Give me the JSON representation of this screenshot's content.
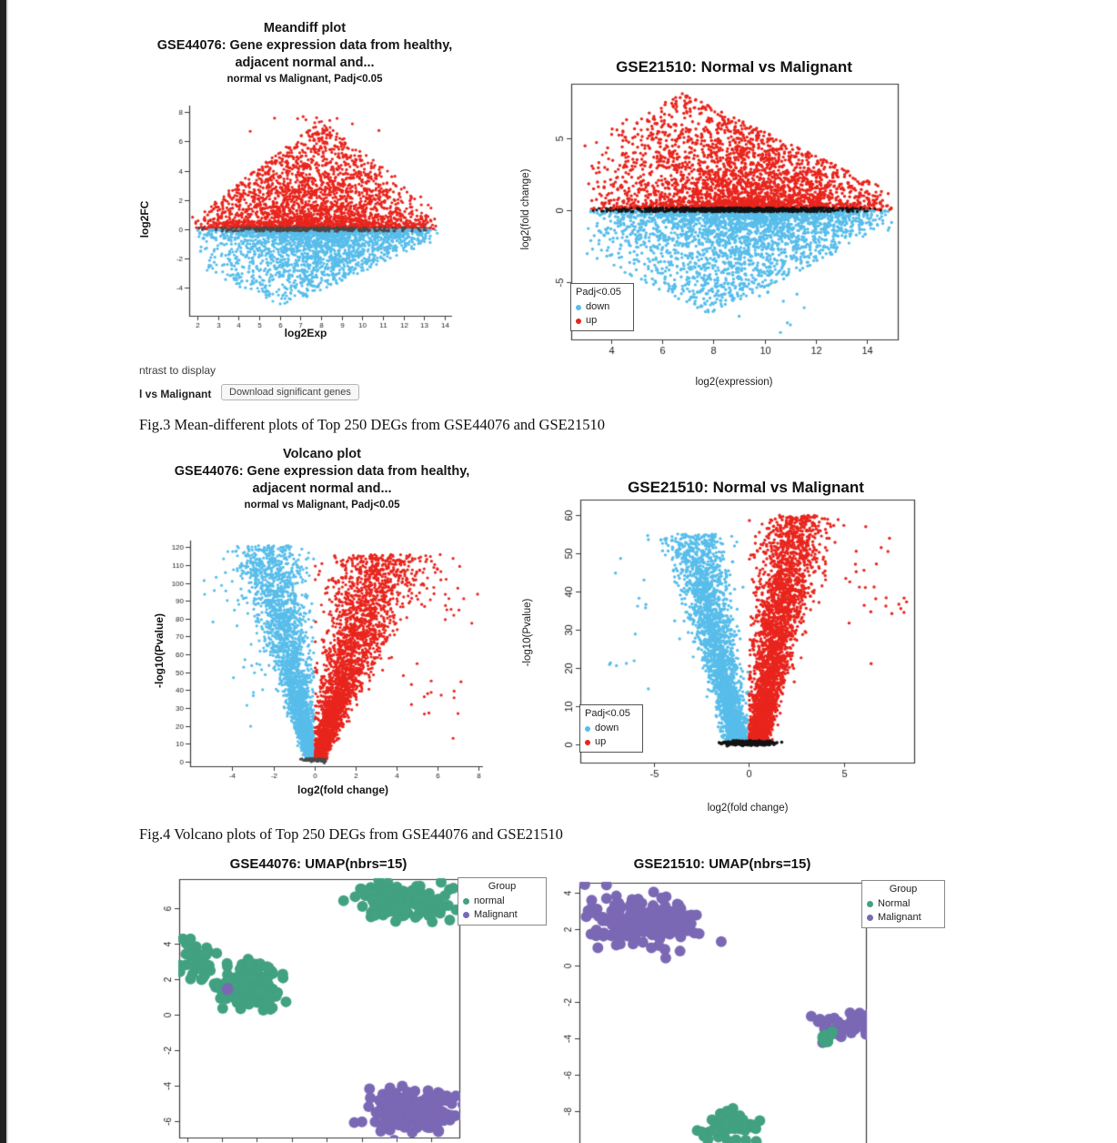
{
  "page": {
    "captions": {
      "fig3": "Fig.3 Mean-different plots of Top 250 DEGs from GSE44076 and GSE21510",
      "fig4": "Fig.4 Volcano plots of Top 250 DEGs from GSE44076 and GSE21510"
    },
    "ui": {
      "contrast_label": "ntrast to display",
      "contrast_value": "l vs Malignant",
      "download_button": "Download significant genes"
    }
  },
  "colors": {
    "red": "#e8251d",
    "blue": "#58bdea",
    "green": "#41a180",
    "purple": "#7b68b5",
    "gray": "#4a4a4a",
    "black": "#141414"
  },
  "chart_data": [
    {
      "id": "ma_gse44076",
      "type": "scatter",
      "title_lines": [
        "Meandiff plot",
        "GSE44076: Gene expression data from healthy,",
        "adjacent normal and...",
        "normal vs Malignant, Padj<0.05"
      ],
      "xlabel": "log2Exp",
      "ylabel": "log2FC",
      "xlim": [
        1.6,
        14.35
      ],
      "ylim": [
        -5.9,
        8.45
      ],
      "xticks": [
        2,
        3,
        4,
        5,
        6,
        7,
        8,
        9,
        10,
        11,
        12,
        13,
        14
      ],
      "xtick_labels": [
        "2",
        "3",
        "4",
        "5",
        "6",
        "7",
        "8",
        "9",
        "10",
        "11",
        "12",
        "13",
        "14"
      ],
      "yticks": [
        -4,
        -2,
        0,
        2,
        4,
        6,
        8
      ],
      "ytick_labels": [
        "-4",
        "-2",
        "0",
        "2",
        "4",
        "6",
        "8"
      ],
      "layers": [
        {
          "name": "up-regulated",
          "gen": "fan",
          "n": 3000,
          "x0": 1.75,
          "x1": 13.7,
          "xpeak": 8,
          "ymax": 7.4,
          "base": 0.1,
          "pow": 2.7,
          "sign": 1,
          "color": "red",
          "r": 1.6
        },
        {
          "name": "up-outliers",
          "gen": "gauss",
          "n": 14,
          "cx": 8.2,
          "cy": 6.9,
          "sx": 1.4,
          "sy": 0.7,
          "color": "red",
          "r": 1.6
        },
        {
          "name": "down-regulated",
          "gen": "fan",
          "n": 2600,
          "x0": 1.75,
          "x1": 13.7,
          "xpeak": 6.2,
          "ymax": 5.3,
          "base": 0.1,
          "pow": 2.9,
          "sign": -1,
          "color": "blue",
          "r": 1.6
        },
        {
          "name": "not-significant",
          "gen": "hline",
          "n": 330,
          "y": 0,
          "jit": 0.26,
          "x0": 1.8,
          "x1": 13.6,
          "color": "gray",
          "r": 1.5
        }
      ]
    },
    {
      "id": "ma_gse21510",
      "type": "scatter",
      "title": "GSE21510: Normal vs Malignant",
      "xlabel": "log2(expression)",
      "ylabel": "log2(fold change)",
      "xlim": [
        2.45,
        15.2
      ],
      "ylim": [
        -9,
        8.8
      ],
      "xticks": [
        4,
        6,
        8,
        10,
        12,
        14
      ],
      "xtick_labels": [
        "4",
        "6",
        "8",
        "10",
        "12",
        "14"
      ],
      "yticks": [
        -5,
        0,
        5
      ],
      "ytick_labels": [
        "-5",
        "0",
        "5"
      ],
      "legend": {
        "title": "Padj<0.05",
        "items": [
          {
            "label": "down",
            "color": "blue"
          },
          {
            "label": "up",
            "color": "red"
          }
        ]
      },
      "layers": [
        {
          "name": "up-regulated",
          "gen": "fan",
          "n": 3300,
          "x0": 2.9,
          "x1": 15.1,
          "xpeak": 6.8,
          "ymax": 8.1,
          "base": 0.14,
          "pow": 2.5,
          "sign": 1,
          "color": "red",
          "r": 1.7
        },
        {
          "name": "down-regulated",
          "gen": "fan",
          "n": 3000,
          "x0": 2.9,
          "x1": 15.1,
          "xpeak": 7.8,
          "ymax": 7.2,
          "base": 0.14,
          "pow": 2.7,
          "sign": -1,
          "color": "blue",
          "r": 1.7
        },
        {
          "name": "down-outliers",
          "gen": "gauss",
          "n": 20,
          "cx": 9,
          "cy": -6,
          "sx": 1.5,
          "sy": 0.8,
          "color": "blue",
          "r": 1.7
        },
        {
          "name": "down-far-pair",
          "gen": "gauss",
          "n": 3,
          "cx": 10.9,
          "cy": -8.1,
          "sx": 0.2,
          "sy": 0.2,
          "color": "blue",
          "r": 1.7
        },
        {
          "name": "not-significant",
          "gen": "hline",
          "n": 800,
          "y": 0.02,
          "jit": 0.3,
          "x0": 3,
          "x1": 15,
          "color": "black",
          "r": 1.4
        }
      ]
    },
    {
      "id": "volcano_gse44076",
      "type": "scatter",
      "title_lines": [
        "Volcano plot",
        "GSE44076: Gene expression data from healthy,",
        "adjacent normal and...",
        "normal vs Malignant, Padj<0.05"
      ],
      "xlabel": "log2(fold change)",
      "ylabel": "-log10(Pvalue)",
      "xlim": [
        -6.05,
        8.2
      ],
      "ylim": [
        -2.6,
        123.7
      ],
      "xticks": [
        -4,
        -2,
        0,
        2,
        4,
        6,
        8
      ],
      "xtick_labels": [
        "-4",
        "-2",
        "0",
        "2",
        "4",
        "6",
        "8"
      ],
      "yticks": [
        0,
        10,
        20,
        30,
        40,
        50,
        60,
        70,
        80,
        90,
        100,
        110,
        120
      ],
      "ytick_labels": [
        "0",
        "10",
        "20",
        "30",
        "40",
        "50",
        "60",
        "70",
        "80",
        "90",
        "100",
        "110",
        "120"
      ],
      "layers": [
        {
          "name": "down-wing",
          "gen": "wing",
          "n": 2600,
          "sign": -1,
          "y0": 1,
          "ymax": 121,
          "pow": 1.35,
          "c0": 0.18,
          "c1": 2.35,
          "s0": 0.12,
          "s1": 0.85,
          "color": "blue",
          "r": 1.6
        },
        {
          "name": "down-outliers-high",
          "gen": "gauss",
          "n": 26,
          "cx": -4.1,
          "cy": 100,
          "sx": 0.85,
          "sy": 10,
          "color": "blue",
          "r": 1.6
        },
        {
          "name": "down-outliers-mid",
          "gen": "gauss",
          "n": 18,
          "cx": -3.1,
          "cy": 47,
          "sx": 0.65,
          "sy": 13,
          "color": "blue",
          "r": 1.6
        },
        {
          "name": "up-wing",
          "gen": "wing",
          "n": 2900,
          "sign": 1,
          "y0": 1,
          "ymax": 116,
          "pow": 1.35,
          "c0": 0.2,
          "c1": 3.3,
          "s0": 0.12,
          "s1": 1.2,
          "color": "red",
          "r": 1.6
        },
        {
          "name": "up-outliers-high",
          "gen": "gauss",
          "n": 30,
          "cx": 6.2,
          "cy": 93,
          "sx": 0.9,
          "sy": 11,
          "color": "red",
          "r": 1.6
        },
        {
          "name": "up-outliers-mid",
          "gen": "gauss",
          "n": 16,
          "cx": 5.6,
          "cy": 36,
          "sx": 0.9,
          "sy": 9,
          "color": "red",
          "r": 1.6
        },
        {
          "name": "not-significant",
          "gen": "gauss",
          "n": 70,
          "cx": 0.05,
          "cy": 0.9,
          "sx": 0.3,
          "sy": 0.5,
          "color": "gray",
          "r": 1.5
        }
      ]
    },
    {
      "id": "volcano_gse21510",
      "type": "scatter",
      "title": "GSE21510: Normal vs Malignant",
      "xlabel": "log2(fold change)",
      "ylabel": "-log10(Pvalue)",
      "xlim": [
        -8.85,
        8.7
      ],
      "ylim": [
        -4.8,
        64
      ],
      "xticks": [
        -5,
        0,
        5
      ],
      "xtick_labels": [
        "-5",
        "0",
        "5"
      ],
      "yticks": [
        0,
        10,
        20,
        30,
        40,
        50,
        60
      ],
      "ytick_labels": [
        "0",
        "10",
        "20",
        "30",
        "40",
        "50",
        "60"
      ],
      "legend": {
        "title": "Padj<0.05",
        "items": [
          {
            "label": "down",
            "color": "blue"
          },
          {
            "label": "up",
            "color": "red"
          }
        ]
      },
      "layers": [
        {
          "name": "down-wing",
          "gen": "wing",
          "n": 2700,
          "sign": -1,
          "y0": 0.4,
          "ymax": 55,
          "pow": 1.5,
          "c0": 0.55,
          "c1": 2.95,
          "s0": 0.25,
          "s1": 0.8,
          "color": "blue",
          "r": 1.7
        },
        {
          "name": "down-outliers",
          "gen": "gauss",
          "n": 14,
          "cx": -5.2,
          "cy": 38,
          "sx": 1.1,
          "sy": 10,
          "color": "blue",
          "r": 1.7
        },
        {
          "name": "down-far",
          "gen": "gauss",
          "n": 5,
          "cx": -6.7,
          "cy": 21,
          "sx": 0.5,
          "sy": 0.6,
          "color": "blue",
          "r": 1.7
        },
        {
          "name": "up-wing",
          "gen": "wing",
          "n": 3100,
          "sign": 1,
          "y0": 0.4,
          "ymax": 60,
          "pow": 1.5,
          "c0": 0.5,
          "c1": 2.6,
          "s0": 0.22,
          "s1": 0.95,
          "color": "red",
          "r": 1.7
        },
        {
          "name": "up-outliers",
          "gen": "gauss",
          "n": 22,
          "cx": 6,
          "cy": 42,
          "sx": 1.0,
          "sy": 9,
          "color": "red",
          "r": 1.7
        },
        {
          "name": "up-far",
          "gen": "gauss",
          "n": 8,
          "cx": 7.6,
          "cy": 36,
          "sx": 0.5,
          "sy": 2,
          "color": "red",
          "r": 1.7
        },
        {
          "name": "not-significant",
          "gen": "gauss",
          "n": 380,
          "cx": 0,
          "cy": 0.28,
          "sx": 0.6,
          "sy": 0.25,
          "color": "black",
          "r": 1.8
        }
      ]
    },
    {
      "id": "umap_gse44076",
      "type": "scatter",
      "title": "GSE44076: UMAP(nbrs=15)",
      "xlabel": "",
      "ylabel": "",
      "xlim": [
        -3.2,
        7.5
      ],
      "ylim": [
        -6.92,
        7.64
      ],
      "xticks": [
        -2.9,
        -1.57,
        -0.23,
        1.1,
        2.44,
        3.77,
        5.11,
        6.44
      ],
      "xtick_labels": null,
      "yticks": [
        6,
        4,
        2,
        0,
        -2,
        -4,
        -6
      ],
      "ytick_labels": [
        "6",
        "4",
        "2",
        "0",
        "-2",
        "-4",
        "-6"
      ],
      "legend": {
        "title": "Group",
        "items": [
          {
            "label": "normal",
            "color": "green"
          },
          {
            "label": "Malignant",
            "color": "purple"
          }
        ]
      },
      "layers": [
        {
          "name": "normal-cluster-topright",
          "gen": "gauss",
          "n": 120,
          "cx": 5.5,
          "cy": 6.35,
          "sx": 0.95,
          "sy": 0.5,
          "color": "green",
          "r": 6
        },
        {
          "name": "normal-cluster-left",
          "gen": "gauss",
          "n": 40,
          "cx": -2.55,
          "cy": 3.15,
          "sx": 0.4,
          "sy": 0.5,
          "color": "green",
          "r": 6
        },
        {
          "name": "normal-cluster-mid",
          "gen": "gauss",
          "n": 150,
          "cx": -0.55,
          "cy": 1.65,
          "sx": 0.65,
          "sy": 0.6,
          "color": "green",
          "r": 6
        },
        {
          "name": "malignant-single",
          "gen": "gauss",
          "n": 1,
          "cx": -1.35,
          "cy": 1.45,
          "sx": 0.01,
          "sy": 0.01,
          "color": "purple",
          "r": 6.5
        },
        {
          "name": "malignant-cluster-bottomright",
          "gen": "gauss",
          "n": 160,
          "cx": 5.85,
          "cy": -5.5,
          "sx": 0.85,
          "sy": 0.62,
          "color": "purple",
          "r": 6
        }
      ]
    },
    {
      "id": "umap_gse21510",
      "type": "scatter",
      "title": "GSE21510: UMAP(nbrs=15)",
      "xlabel": "",
      "ylabel": "",
      "xlim": [
        -2,
        10
      ],
      "ylim": [
        -9.75,
        4.55
      ],
      "xticks": [],
      "xtick_labels": null,
      "yticks": [
        4,
        2,
        0,
        -2,
        -4,
        -6,
        -8
      ],
      "ytick_labels": [
        "4",
        "2",
        "0",
        "-2",
        "-4",
        "-6",
        "-8"
      ],
      "legend": {
        "title": "Group",
        "items": [
          {
            "label": "Normal",
            "color": "green"
          },
          {
            "label": "Malignant",
            "color": "purple"
          }
        ]
      },
      "layers": [
        {
          "name": "malignant-cluster-topleft",
          "gen": "gauss",
          "n": 175,
          "cx": 0.6,
          "cy": 2.6,
          "sx": 1.2,
          "sy": 0.8,
          "color": "purple",
          "r": 6
        },
        {
          "name": "malignant-cluster-right",
          "gen": "gauss",
          "n": 36,
          "cx": 9.0,
          "cy": -3.3,
          "sx": 0.45,
          "sy": 0.4,
          "color": "purple",
          "r": 6
        },
        {
          "name": "normal-dot-right",
          "gen": "gauss",
          "n": 10,
          "cx": 8.25,
          "cy": -4.1,
          "sx": 0.15,
          "sy": 0.25,
          "color": "green",
          "r": 6
        },
        {
          "name": "normal-cluster-bottom",
          "gen": "gauss",
          "n": 55,
          "cx": 4.4,
          "cy": -8.9,
          "sx": 0.55,
          "sy": 0.4,
          "color": "green",
          "r": 6
        }
      ]
    }
  ]
}
